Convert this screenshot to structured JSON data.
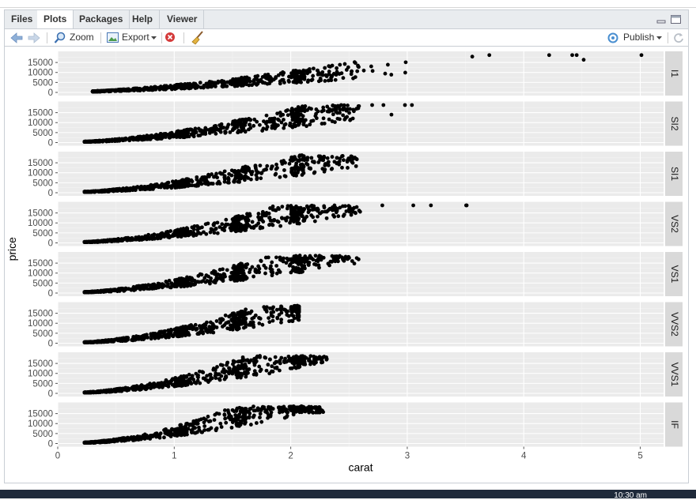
{
  "tabs": [
    {
      "label": "Files",
      "active": false
    },
    {
      "label": "Plots",
      "active": true
    },
    {
      "label": "Packages",
      "active": false
    },
    {
      "label": "Help",
      "active": false
    },
    {
      "label": "Viewer",
      "active": false
    }
  ],
  "toolbar": {
    "zoom_label": "Zoom",
    "export_label": "Export",
    "publish_label": "Publish"
  },
  "taskbar": {
    "clock": "10:30 am"
  },
  "colors": {
    "panel_bg": "#ebebeb",
    "grid": "#ffffff",
    "strip_bg": "#d9d9d9",
    "point": "#000000"
  },
  "chart_data": {
    "type": "scatter",
    "title": "",
    "xlabel": "carat",
    "ylabel": "price",
    "xlim": [
      0,
      5.2
    ],
    "ylim": [
      0,
      19000
    ],
    "x_ticks": [
      "0",
      "1",
      "2",
      "3",
      "4",
      "5"
    ],
    "y_ticks": [
      "0",
      "5000",
      "10000",
      "15000"
    ],
    "facet_by": "clarity",
    "facets": [
      {
        "label": "I1",
        "min_carat": 0.3,
        "max_carat": 5.01,
        "price_scale": 2700,
        "exponent": 1.5,
        "max_price": 18700
      },
      {
        "label": "SI2",
        "min_carat": 0.23,
        "max_carat": 3.04,
        "price_scale": 3900,
        "exponent": 1.65,
        "max_price": 18800
      },
      {
        "label": "SI1",
        "min_carat": 0.23,
        "max_carat": 2.57,
        "price_scale": 4200,
        "exponent": 1.7,
        "max_price": 18800
      },
      {
        "label": "VS2",
        "min_carat": 0.23,
        "max_carat": 3.51,
        "price_scale": 4500,
        "exponent": 1.75,
        "max_price": 18800
      },
      {
        "label": "VS1",
        "min_carat": 0.23,
        "max_carat": 2.59,
        "price_scale": 4800,
        "exponent": 1.75,
        "max_price": 18800
      },
      {
        "label": "VVS2",
        "min_carat": 0.23,
        "max_carat": 2.07,
        "price_scale": 5200,
        "exponent": 1.8,
        "max_price": 18800
      },
      {
        "label": "VVS1",
        "min_carat": 0.23,
        "max_carat": 2.31,
        "price_scale": 5500,
        "exponent": 1.85,
        "max_price": 18800
      },
      {
        "label": "IF",
        "min_carat": 0.23,
        "max_carat": 2.29,
        "price_scale": 6000,
        "exponent": 1.9,
        "max_price": 18800
      }
    ]
  }
}
